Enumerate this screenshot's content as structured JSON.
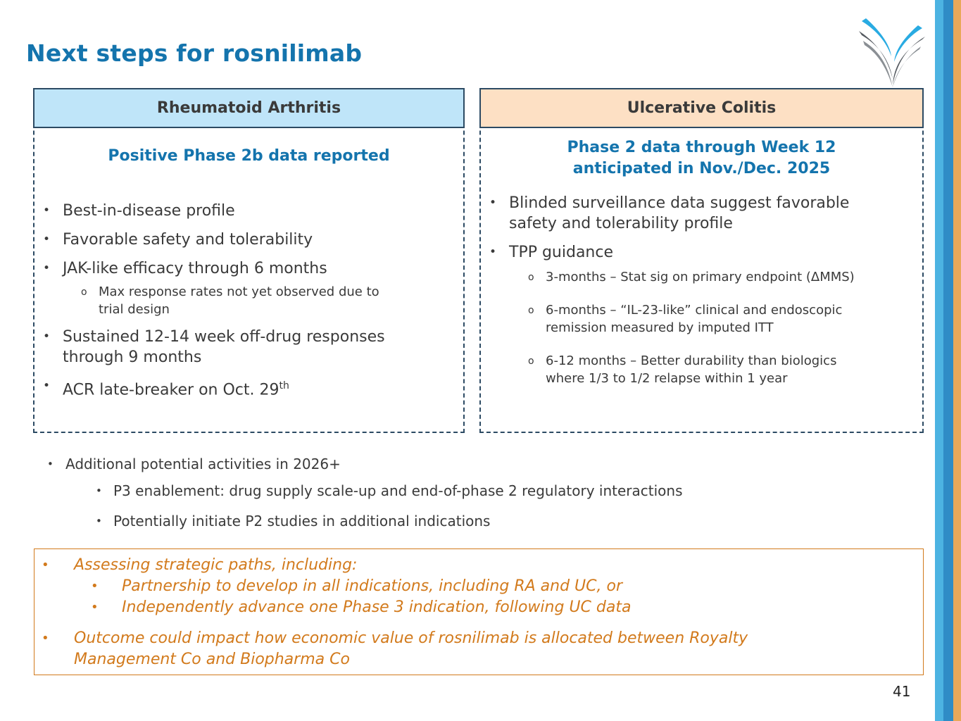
{
  "title": "Next steps for rosnilimab",
  "brand_colors": {
    "blue": "#1474ad",
    "orange": "#d27a1c",
    "ra_header": "#bfe5f9",
    "uc_header": "#fde0c4"
  },
  "ra": {
    "header": "Rheumatoid Arthritis",
    "subtitle": "Positive Phase 2b data reported",
    "bullets": [
      "Best-in-disease profile",
      "Favorable safety and tolerability",
      "JAK-like efficacy through 6 months"
    ],
    "sub_bullet_line1": "Max response rates not yet observed due to",
    "sub_bullet_line2": "trial design",
    "bullet4_line1": "Sustained 12-14 week off-drug responses",
    "bullet4_line2": "through 9 months",
    "bullet5": "ACR late-breaker on Oct. 29",
    "bullet5_sup": "th"
  },
  "uc": {
    "header": "Ulcerative Colitis",
    "subtitle_line1": "Phase 2 data through Week 12",
    "subtitle_line2": "anticipated in Nov./Dec. 2025",
    "bullet1_line1": "Blinded surveillance data suggest favorable",
    "bullet1_line2": "safety and tolerability profile",
    "bullet2": "TPP guidance",
    "sub1": "3-months – Stat sig on primary endpoint (ΔMMS)",
    "sub2_line1": "6-months – “IL-23-like” clinical and endoscopic",
    "sub2_line2": "remission measured by imputed ITT",
    "sub3_line1": "6-12 months – Better durability than biologics",
    "sub3_line2": "where 1/3 to 1/2 relapse within 1 year"
  },
  "activities": {
    "main": "Additional potential activities in 2026+",
    "items": [
      "P3 enablement: drug supply scale-up and end-of-phase 2 regulatory interactions",
      "Potentially initiate P2 studies in additional indications"
    ]
  },
  "strategy": {
    "line1": "Assessing strategic paths, including:",
    "sub1": "Partnership to develop in all indications, including RA and UC, or",
    "sub2": "Independently advance one Phase 3 indication, following UC data",
    "line2a": "Outcome could impact how economic value of rosnilimab is allocated between Royalty",
    "line2b": "Management Co and Biopharma Co"
  },
  "page_number": "41",
  "icons": {
    "logo": "company-logo-icon"
  }
}
